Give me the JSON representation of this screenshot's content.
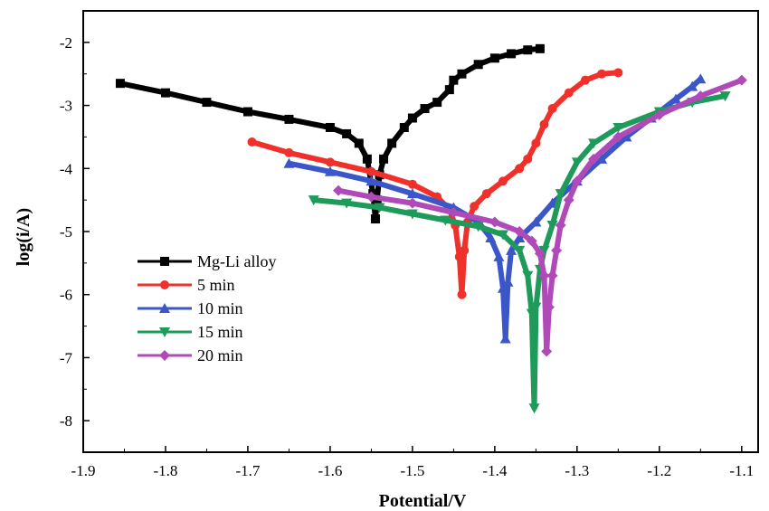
{
  "chart_data": {
    "type": "line",
    "xlabel": "Potential/V",
    "ylabel": "log(i/A)",
    "xlim": [
      -1.9,
      -1.08
    ],
    "ylim": [
      -8.5,
      -1.5
    ],
    "x_ticks": [
      "-1.9",
      "-1.8",
      "-1.7",
      "-1.6",
      "-1.5",
      "-1.4",
      "-1.3",
      "-1.2",
      "-1.1"
    ],
    "y_ticks": [
      "-2",
      "-3",
      "-4",
      "-5",
      "-6",
      "-7",
      "-8"
    ],
    "legend_position": "left",
    "series": [
      {
        "name": "Mg-Li alloy",
        "color": "#000000",
        "marker": "square",
        "x": [
          -1.855,
          -1.8,
          -1.75,
          -1.7,
          -1.65,
          -1.6,
          -1.58,
          -1.565,
          -1.555,
          -1.548,
          -1.545,
          -1.543,
          -1.54,
          -1.535,
          -1.525,
          -1.51,
          -1.5,
          -1.485,
          -1.47,
          -1.455,
          -1.45,
          -1.44,
          -1.42,
          -1.4,
          -1.38,
          -1.36,
          -1.345
        ],
        "y": [
          -2.65,
          -2.8,
          -2.95,
          -3.1,
          -3.22,
          -3.35,
          -3.45,
          -3.6,
          -3.85,
          -4.4,
          -4.8,
          -4.5,
          -4.1,
          -3.85,
          -3.6,
          -3.35,
          -3.2,
          -3.05,
          -2.95,
          -2.75,
          -2.6,
          -2.5,
          -2.35,
          -2.25,
          -2.18,
          -2.12,
          -2.1
        ]
      },
      {
        "name": " 5 min",
        "color": "#f0302a",
        "marker": "circle",
        "x": [
          -1.695,
          -1.65,
          -1.6,
          -1.55,
          -1.5,
          -1.47,
          -1.455,
          -1.448,
          -1.443,
          -1.44,
          -1.437,
          -1.433,
          -1.425,
          -1.41,
          -1.39,
          -1.37,
          -1.36,
          -1.35,
          -1.34,
          -1.33,
          -1.31,
          -1.29,
          -1.27,
          -1.25
        ],
        "y": [
          -3.58,
          -3.75,
          -3.9,
          -4.05,
          -4.25,
          -4.45,
          -4.65,
          -4.9,
          -5.4,
          -6.0,
          -5.3,
          -4.85,
          -4.6,
          -4.4,
          -4.2,
          -4.0,
          -3.85,
          -3.6,
          -3.3,
          -3.05,
          -2.8,
          -2.6,
          -2.5,
          -2.48
        ]
      },
      {
        "name": "10 min",
        "color": "#3a56c8",
        "marker": "triangle-up",
        "x": [
          -1.65,
          -1.6,
          -1.55,
          -1.5,
          -1.45,
          -1.42,
          -1.405,
          -1.395,
          -1.39,
          -1.387,
          -1.384,
          -1.38,
          -1.37,
          -1.35,
          -1.33,
          -1.3,
          -1.27,
          -1.24,
          -1.21,
          -1.18,
          -1.16,
          -1.15
        ],
        "y": [
          -3.92,
          -4.05,
          -4.2,
          -4.4,
          -4.62,
          -4.85,
          -5.1,
          -5.4,
          -5.9,
          -6.7,
          -5.8,
          -5.3,
          -5.1,
          -4.85,
          -4.55,
          -4.2,
          -3.85,
          -3.5,
          -3.2,
          -2.9,
          -2.7,
          -2.58
        ]
      },
      {
        "name": "15 min",
        "color": "#1e9a5a",
        "marker": "triangle-down",
        "x": [
          -1.62,
          -1.58,
          -1.54,
          -1.5,
          -1.46,
          -1.42,
          -1.39,
          -1.37,
          -1.36,
          -1.355,
          -1.352,
          -1.35,
          -1.345,
          -1.34,
          -1.33,
          -1.32,
          -1.3,
          -1.28,
          -1.25,
          -1.2,
          -1.16,
          -1.12
        ],
        "y": [
          -4.5,
          -4.55,
          -4.62,
          -4.72,
          -4.82,
          -4.92,
          -5.05,
          -5.3,
          -5.7,
          -6.3,
          -7.8,
          -6.2,
          -5.6,
          -5.3,
          -4.9,
          -4.4,
          -3.9,
          -3.6,
          -3.35,
          -3.1,
          -2.95,
          -2.85
        ]
      },
      {
        "name": "20 min",
        "color": "#b04ab8",
        "marker": "diamond",
        "x": [
          -1.59,
          -1.55,
          -1.5,
          -1.45,
          -1.4,
          -1.37,
          -1.355,
          -1.345,
          -1.34,
          -1.337,
          -1.334,
          -1.33,
          -1.325,
          -1.32,
          -1.31,
          -1.3,
          -1.28,
          -1.25,
          -1.2,
          -1.15,
          -1.1
        ],
        "y": [
          -4.35,
          -4.45,
          -4.55,
          -4.7,
          -4.85,
          -5.0,
          -5.15,
          -5.35,
          -5.7,
          -6.9,
          -6.2,
          -5.7,
          -5.3,
          -4.9,
          -4.5,
          -4.2,
          -3.85,
          -3.5,
          -3.15,
          -2.85,
          -2.6
        ]
      }
    ]
  }
}
